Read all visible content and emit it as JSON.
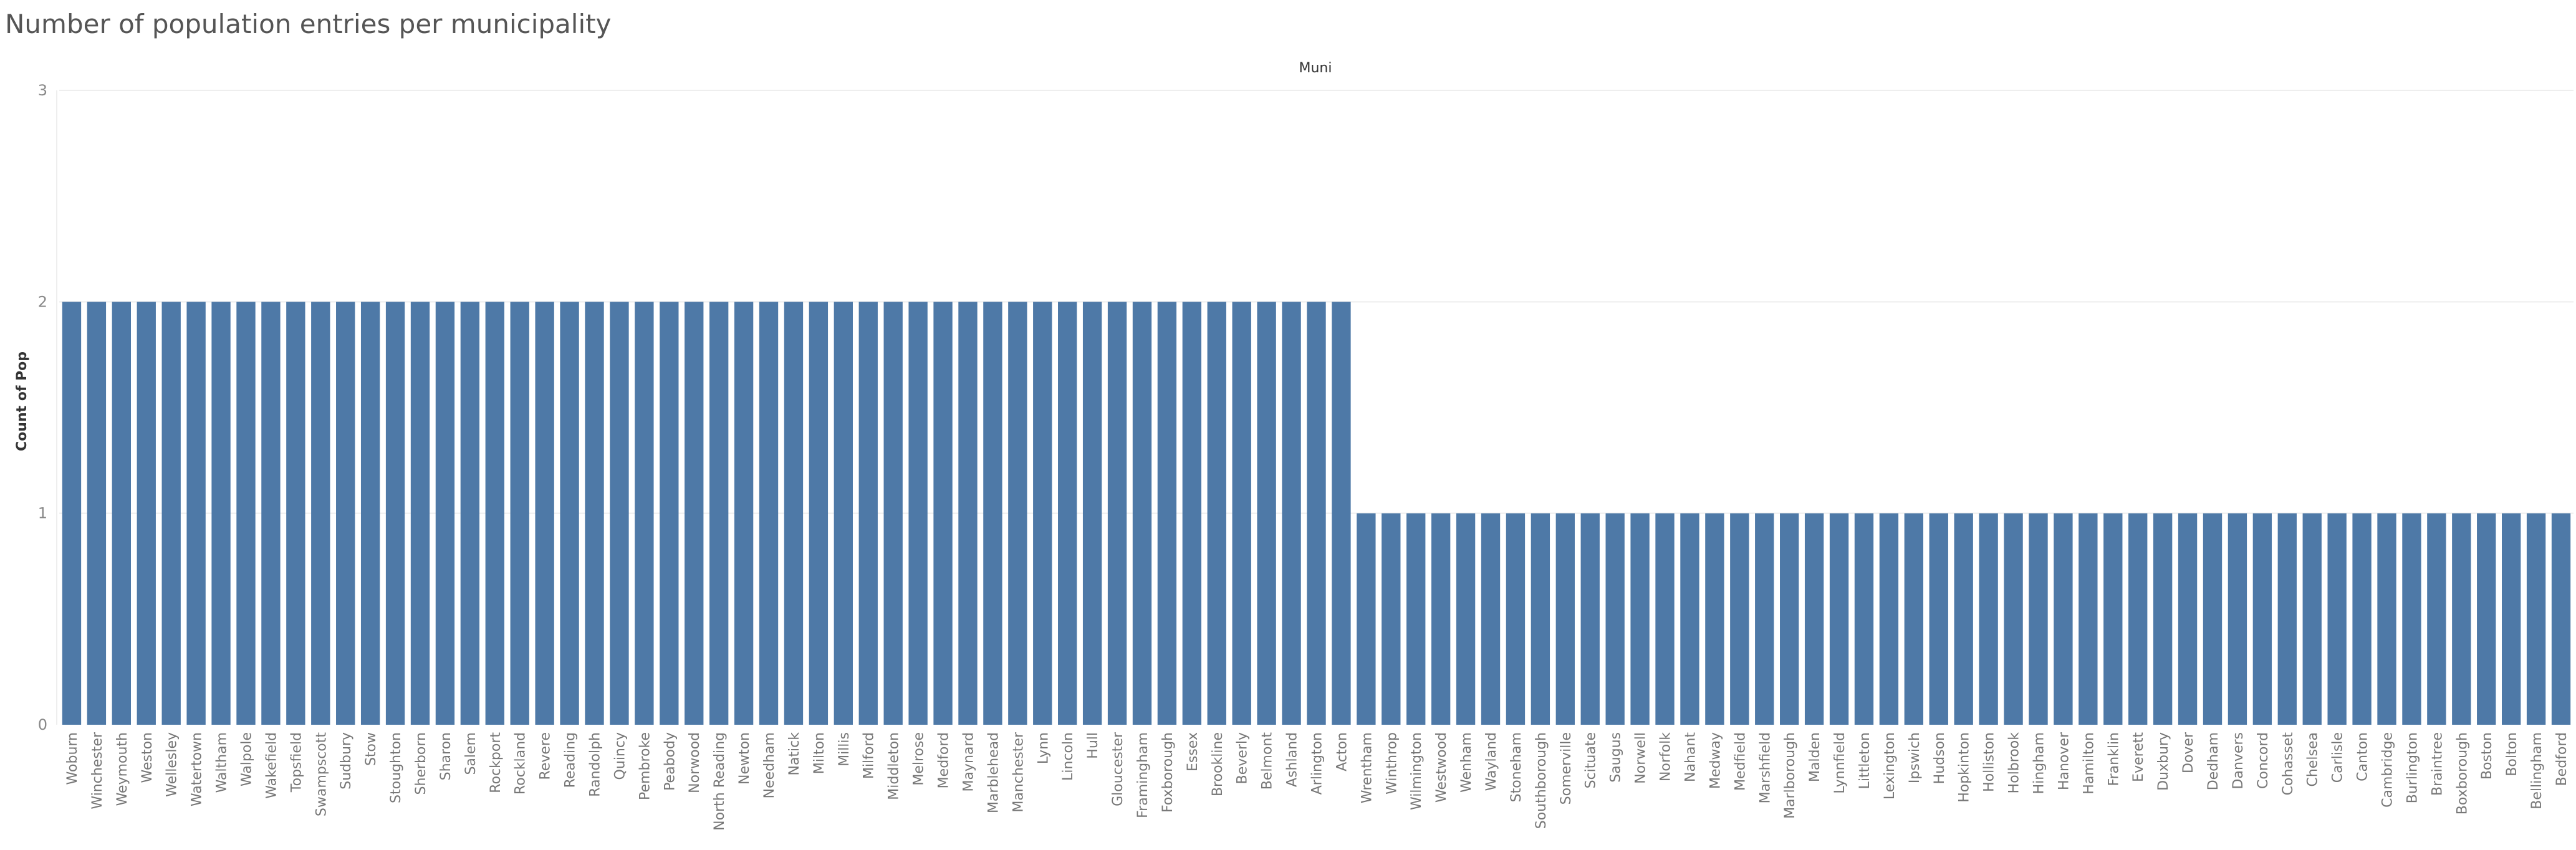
{
  "chart_data": {
    "type": "bar",
    "title": "Number of population entries per municipality",
    "column_header": "Muni",
    "ylabel": "Count of Pop",
    "ylim": [
      0,
      3
    ],
    "yticks": [
      0,
      1,
      2,
      3
    ],
    "grid": true,
    "legend": "none",
    "bar_color": "#4e79a7",
    "categories": [
      "Woburn",
      "Winchester",
      "Weymouth",
      "Weston",
      "Wellesley",
      "Watertown",
      "Waltham",
      "Walpole",
      "Wakefield",
      "Topsfield",
      "Swampscott",
      "Sudbury",
      "Stow",
      "Stoughton",
      "Sherborn",
      "Sharon",
      "Salem",
      "Rockport",
      "Rockland",
      "Revere",
      "Reading",
      "Randolph",
      "Quincy",
      "Pembroke",
      "Peabody",
      "Norwood",
      "North Reading",
      "Newton",
      "Needham",
      "Natick",
      "Milton",
      "Millis",
      "Milford",
      "Middleton",
      "Melrose",
      "Medford",
      "Maynard",
      "Marblehead",
      "Manchester",
      "Lynn",
      "Lincoln",
      "Hull",
      "Gloucester",
      "Framingham",
      "Foxborough",
      "Essex",
      "Brookline",
      "Beverly",
      "Belmont",
      "Ashland",
      "Arlington",
      "Acton",
      "Wrentham",
      "Winthrop",
      "Wilmington",
      "Westwood",
      "Wenham",
      "Wayland",
      "Stoneham",
      "Southborough",
      "Somerville",
      "Scituate",
      "Saugus",
      "Norwell",
      "Norfolk",
      "Nahant",
      "Medway",
      "Medfield",
      "Marshfield",
      "Marlborough",
      "Malden",
      "Lynnfield",
      "Littleton",
      "Lexington",
      "Ipswich",
      "Hudson",
      "Hopkinton",
      "Holliston",
      "Holbrook",
      "Hingham",
      "Hanover",
      "Hamilton",
      "Franklin",
      "Everett",
      "Duxbury",
      "Dover",
      "Dedham",
      "Danvers",
      "Concord",
      "Cohasset",
      "Chelsea",
      "Carlisle",
      "Canton",
      "Cambridge",
      "Burlington",
      "Braintree",
      "Boxborough",
      "Boston",
      "Bolton",
      "Bellingham",
      "Bedford"
    ],
    "values": [
      2,
      2,
      2,
      2,
      2,
      2,
      2,
      2,
      2,
      2,
      2,
      2,
      2,
      2,
      2,
      2,
      2,
      2,
      2,
      2,
      2,
      2,
      2,
      2,
      2,
      2,
      2,
      2,
      2,
      2,
      2,
      2,
      2,
      2,
      2,
      2,
      2,
      2,
      2,
      2,
      2,
      2,
      2,
      2,
      2,
      2,
      2,
      2,
      2,
      2,
      2,
      2,
      1,
      1,
      1,
      1,
      1,
      1,
      1,
      1,
      1,
      1,
      1,
      1,
      1,
      1,
      1,
      1,
      1,
      1,
      1,
      1,
      1,
      1,
      1,
      1,
      1,
      1,
      1,
      1,
      1,
      1,
      1,
      1,
      1,
      1,
      1,
      1,
      1,
      1,
      1,
      1,
      1,
      1,
      1,
      1,
      1,
      1,
      1,
      1,
      1
    ]
  }
}
